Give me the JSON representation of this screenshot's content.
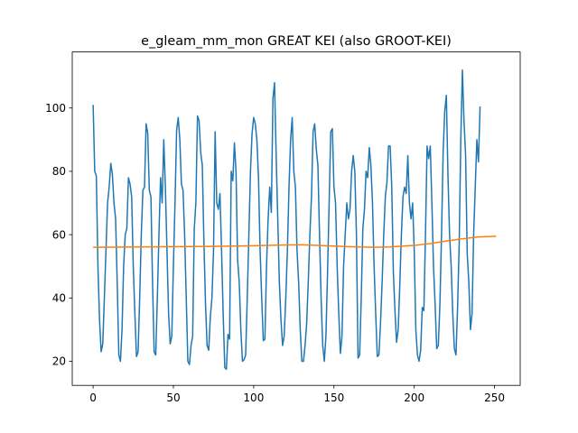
{
  "chart_data": {
    "type": "line",
    "title": "e_gleam_mm_mon GREAT KEI (also GROOT-KEI)",
    "xlabel": "",
    "ylabel": "",
    "xlim": [
      -13,
      266
    ],
    "ylim": [
      12.4,
      117.7
    ],
    "grid": false,
    "x_ticks": [
      0,
      50,
      100,
      150,
      200,
      250
    ],
    "y_ticks": [
      20,
      40,
      60,
      80,
      100
    ],
    "series": [
      {
        "color": "#1f77b4",
        "values": [
          101,
          80,
          78.5,
          50,
          33,
          23,
          25.5,
          40,
          55,
          70,
          75,
          82.5,
          79,
          70,
          65,
          45,
          22,
          20,
          30,
          50,
          60,
          62,
          78,
          76,
          72,
          50,
          35,
          21.5,
          23,
          40,
          60,
          74,
          75,
          95,
          92,
          74,
          72,
          45,
          23,
          22,
          40,
          60,
          78,
          70,
          90,
          75,
          55,
          35,
          25.5,
          28,
          50,
          70,
          93,
          97,
          90,
          76,
          74,
          60,
          40,
          20,
          19,
          25,
          28,
          62,
          70,
          97.5,
          96,
          86,
          82,
          58,
          38,
          25,
          23.5,
          34,
          40,
          55,
          92.5,
          70,
          68,
          73,
          55,
          35,
          18,
          17.5,
          28.5,
          27,
          80,
          77,
          89,
          80,
          52,
          45,
          30,
          20,
          20.5,
          22,
          40,
          60,
          80,
          92,
          97,
          95,
          90,
          78,
          55,
          40,
          26.5,
          27,
          50,
          65,
          75,
          67,
          103,
          108,
          85,
          65,
          45,
          33,
          25,
          28,
          40,
          55,
          75,
          90,
          97,
          80,
          75,
          55,
          45,
          30,
          20,
          20,
          25,
          32,
          45,
          60,
          72,
          92.5,
          95,
          87,
          82,
          60,
          40,
          25,
          20,
          28,
          48,
          70,
          92.5,
          93.5,
          75,
          70,
          50,
          35,
          22.5,
          28,
          50,
          60,
          70,
          65,
          68,
          80,
          85,
          80,
          60,
          21,
          22,
          40,
          62,
          68,
          80,
          78,
          87.5,
          82,
          70,
          50,
          35,
          21.5,
          22,
          32,
          45,
          60,
          72,
          76.5,
          88,
          88,
          75,
          48,
          36,
          26,
          30,
          44,
          60,
          72,
          75,
          73,
          85,
          70,
          65,
          70,
          55,
          30,
          22,
          20,
          23.5,
          37,
          36,
          60,
          88,
          84,
          88,
          70,
          50,
          38,
          24,
          25,
          38,
          60,
          86,
          99,
          104,
          79,
          60,
          50,
          35,
          24,
          22,
          37,
          57,
          90,
          112,
          96,
          85,
          54,
          45,
          30,
          35,
          60,
          75,
          90,
          83,
          100.5
        ]
      },
      {
        "color": "#ff7f0e",
        "x": [
          0,
          25,
          50,
          75,
          100,
          115,
          130,
          145,
          160,
          175,
          185,
          200,
          210,
          220,
          230,
          240,
          251
        ],
        "values": [
          56,
          56.1,
          56.2,
          56.3,
          56.5,
          56.7,
          56.8,
          56.5,
          56.2,
          56.0,
          56.1,
          56.6,
          57.2,
          58.0,
          58.7,
          59.3,
          59.5
        ]
      }
    ]
  }
}
